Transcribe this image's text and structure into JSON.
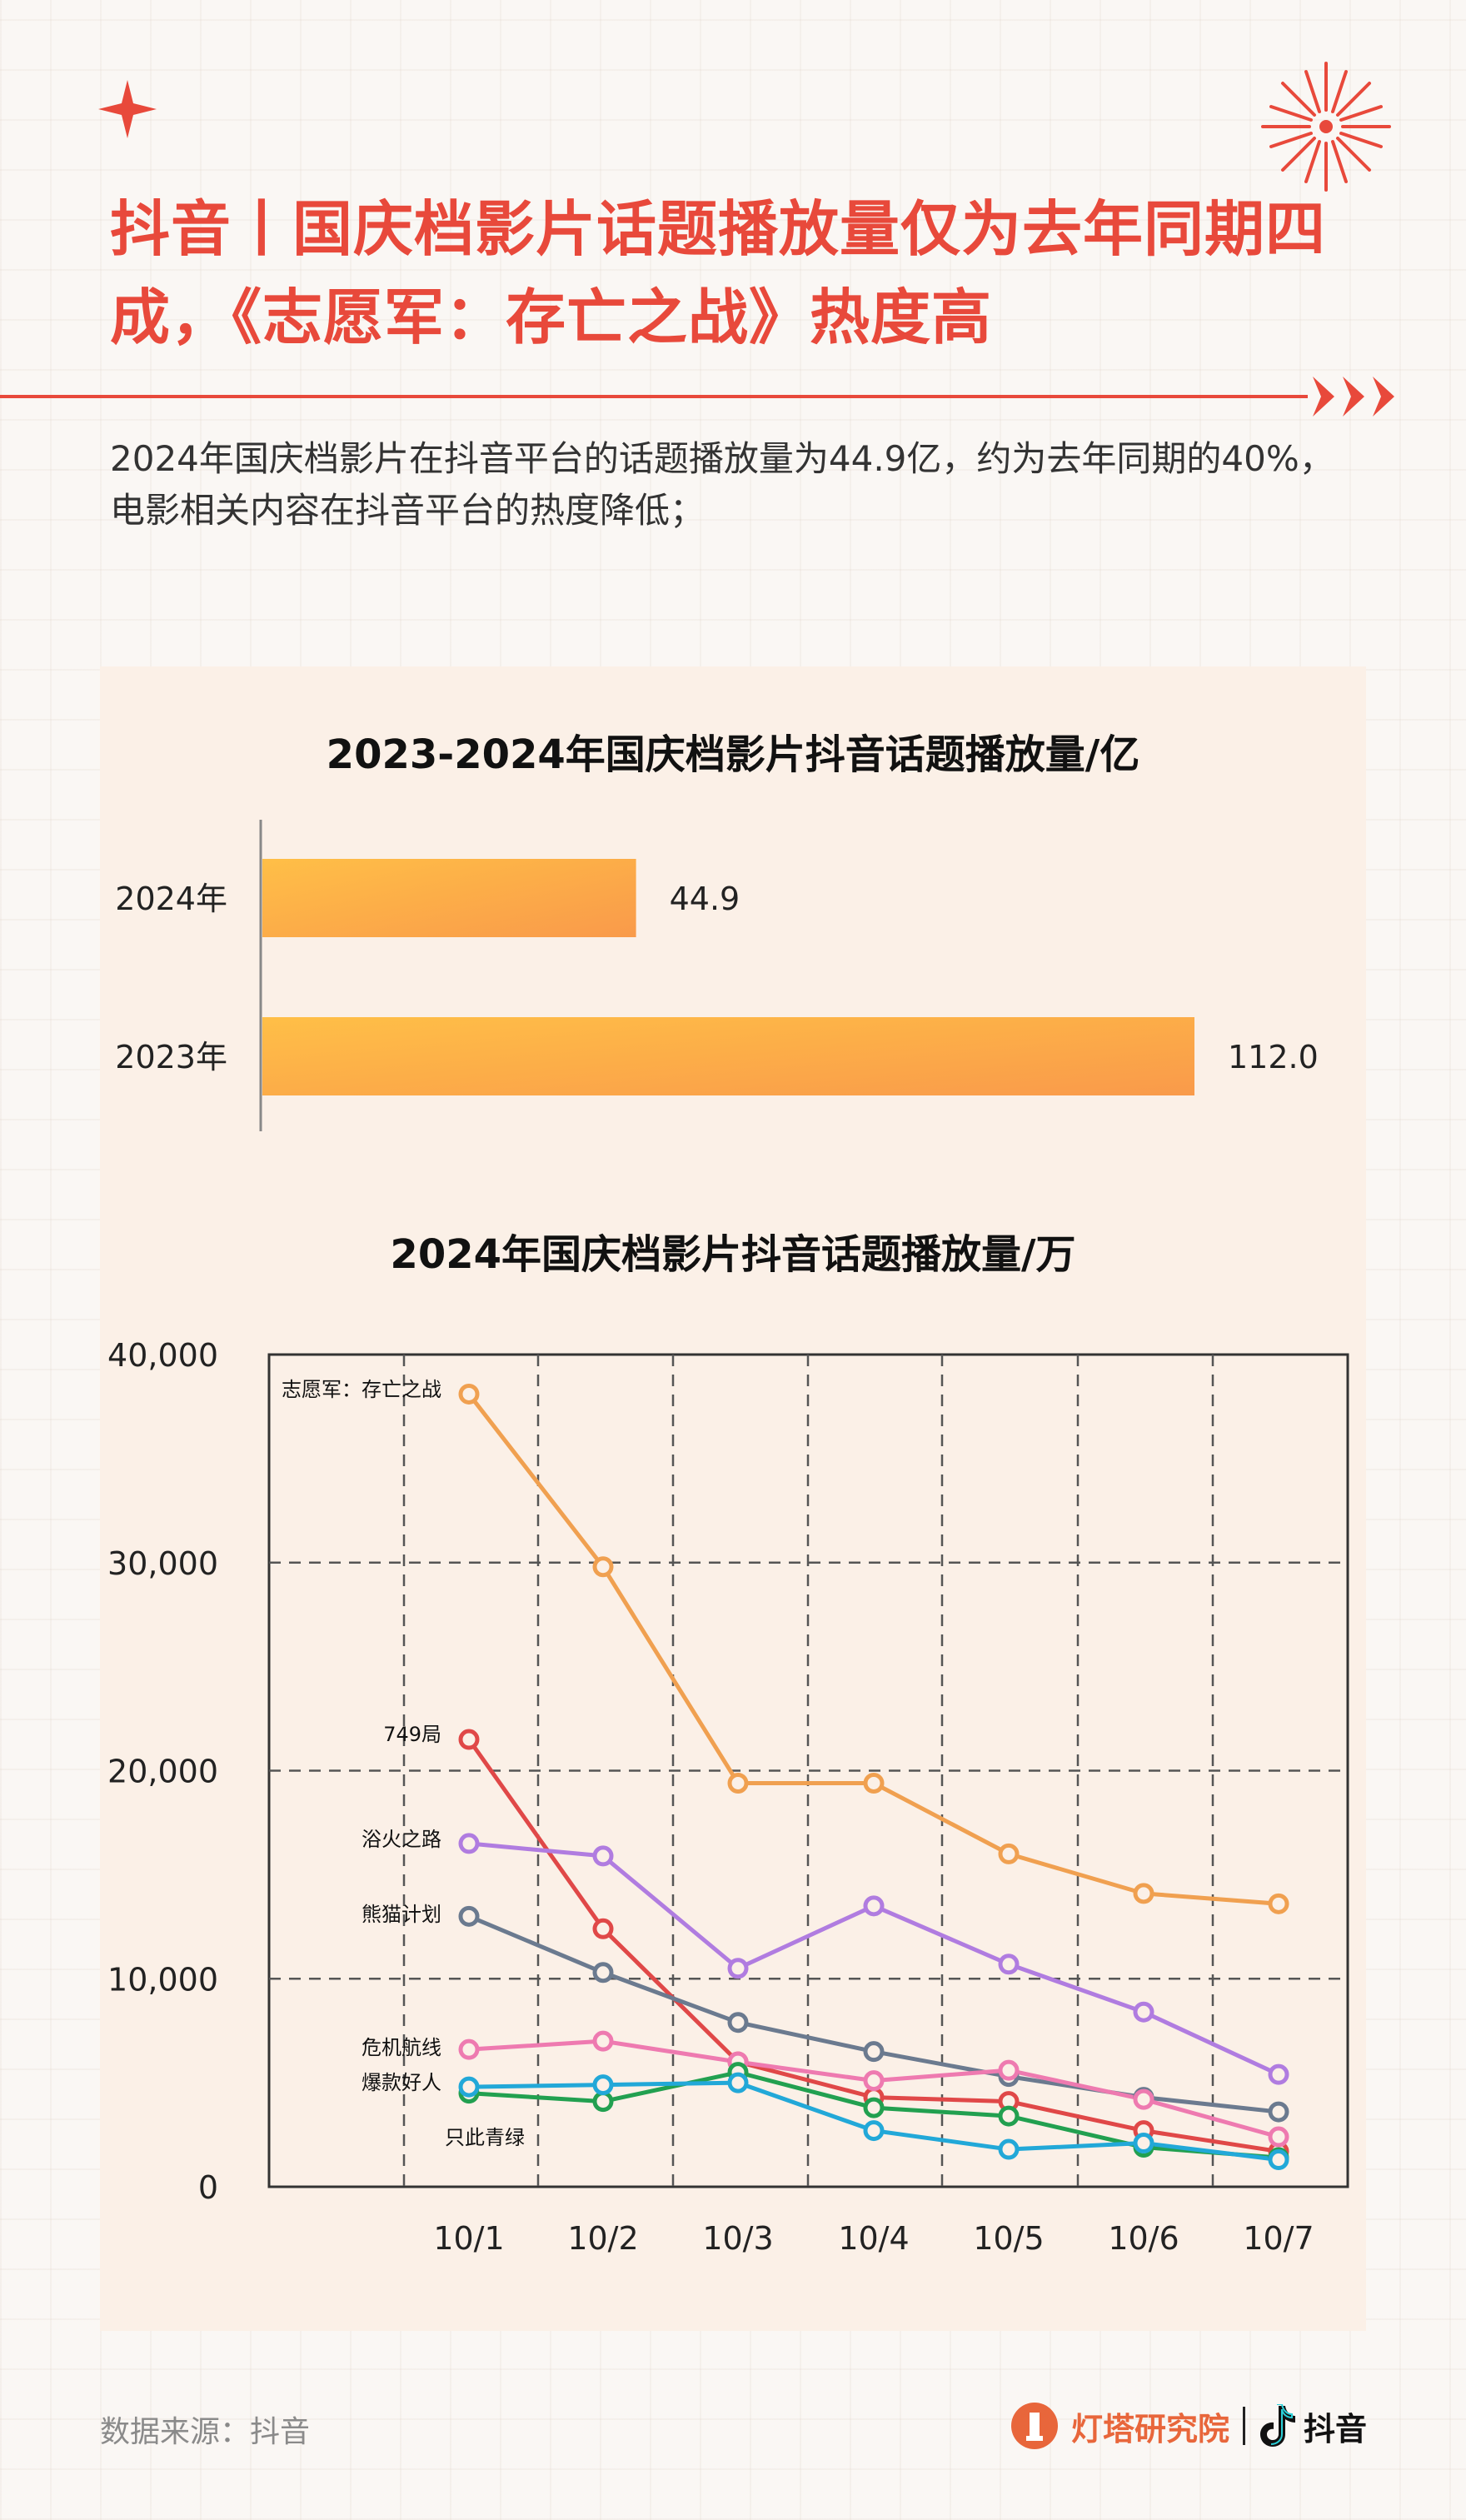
{
  "header": {
    "title": "抖音丨国庆档影片话题播放量仅为去年同期四成，《志愿军：存亡之战》热度高",
    "subtitle": "2024年国庆档影片在抖音平台的话题播放量为44.9亿，约为去年同期的40%，电影相关内容在抖音平台的热度降低；"
  },
  "chart_data": [
    {
      "type": "bar",
      "orientation": "horizontal",
      "title": "2023-2024年国庆档影片抖音话题播放量/亿",
      "categories": [
        "2024年",
        "2023年"
      ],
      "values": [
        44.9,
        112.0
      ],
      "value_labels": [
        "44.9",
        "112.0"
      ],
      "xlim": [
        0,
        120
      ],
      "bar_colors": [
        "#ffbf47",
        "#f99a4a"
      ]
    },
    {
      "type": "line",
      "title": "2024年国庆档影片抖音话题播放量/万",
      "x": [
        "10/1",
        "10/2",
        "10/3",
        "10/4",
        "10/5",
        "10/6",
        "10/7"
      ],
      "ylim": [
        0,
        40000
      ],
      "yticks": [
        0,
        10000,
        20000,
        30000,
        40000
      ],
      "ytick_labels": [
        "0",
        "10,000",
        "20,000",
        "30,000",
        "40,000"
      ],
      "grid": true,
      "series": [
        {
          "name": "志愿军：存亡之战",
          "color": "#f0a050",
          "values": [
            38100,
            29800,
            19400,
            19400,
            16000,
            14100,
            13600
          ]
        },
        {
          "name": "749局",
          "color": "#e04848",
          "values": [
            21500,
            12400,
            6000,
            4300,
            4100,
            2700,
            1700
          ]
        },
        {
          "name": "浴火之路",
          "color": "#b07ce0",
          "values": [
            16500,
            15900,
            10500,
            13500,
            10700,
            8400,
            5400
          ]
        },
        {
          "name": "熊猫计划",
          "color": "#6b7a8f",
          "values": [
            13000,
            10300,
            7900,
            6500,
            5300,
            4300,
            3600
          ]
        },
        {
          "name": "危机航线",
          "color": "#ee7ab0",
          "values": [
            6600,
            7000,
            6000,
            5100,
            5600,
            4200,
            2400
          ]
        },
        {
          "name": "爆款好人",
          "color": "#22a050",
          "values": [
            4500,
            4100,
            5500,
            3800,
            3400,
            1900,
            1400
          ]
        },
        {
          "name": "只此青绿",
          "color": "#22a8d8",
          "values": [
            4800,
            4900,
            5000,
            2700,
            1800,
            2100,
            1300
          ]
        }
      ]
    }
  ],
  "footer": {
    "source": "数据来源：抖音",
    "brand": "灯塔研究院",
    "partner": "抖音"
  },
  "colors": {
    "accent": "#e8493b",
    "panel": "#fbf0e7"
  }
}
